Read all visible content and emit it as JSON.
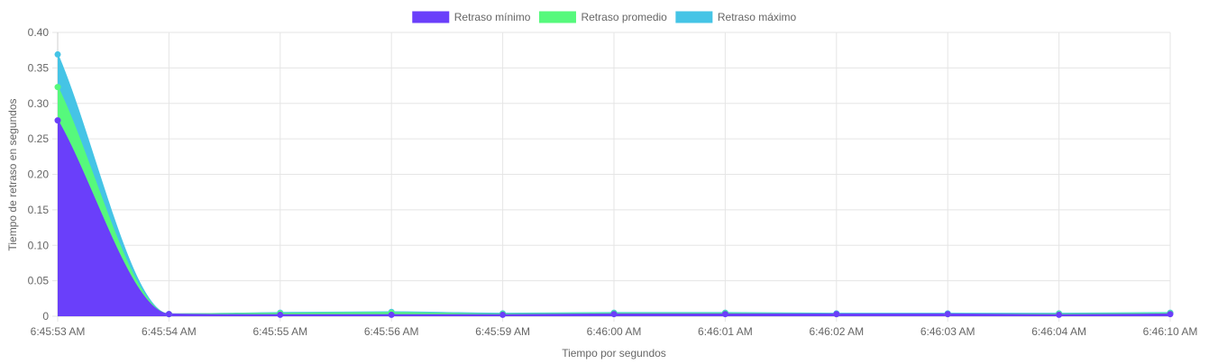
{
  "chart_data": {
    "type": "area",
    "categories": [
      "6:45:53 AM",
      "6:45:54 AM",
      "6:45:55 AM",
      "6:45:56 AM",
      "6:45:59 AM",
      "6:46:00 AM",
      "6:46:01 AM",
      "6:46:02 AM",
      "6:46:03 AM",
      "6:46:04 AM",
      "6:46:10 AM"
    ],
    "series": [
      {
        "name": "Retraso mínimo",
        "color": "#6a3ffa",
        "values": [
          0.276,
          0.003,
          0.002,
          0.002,
          0.002,
          0.003,
          0.003,
          0.003,
          0.003,
          0.002,
          0.003
        ]
      },
      {
        "name": "Retraso promedio",
        "color": "#56f97c",
        "values": [
          0.323,
          0.003,
          0.004,
          0.005,
          0.003,
          0.004,
          0.004,
          0.003,
          0.003,
          0.003,
          0.004
        ]
      },
      {
        "name": "Retraso máximo",
        "color": "#45c4e6",
        "values": [
          0.369,
          0.003,
          0.005,
          0.006,
          0.004,
          0.005,
          0.005,
          0.004,
          0.004,
          0.004,
          0.005
        ]
      }
    ],
    "xlabel": "Tiempo por segundos",
    "ylabel": "Tiempo de retraso en segundos",
    "ylim": [
      0,
      0.4
    ],
    "yticks": [
      "0",
      "0.05",
      "0.10",
      "0.15",
      "0.20",
      "0.25",
      "0.30",
      "0.35",
      "0.40"
    ],
    "ytick_values": [
      0,
      0.05,
      0.1,
      0.15,
      0.2,
      0.25,
      0.3,
      0.35,
      0.4
    ],
    "grid": true,
    "legend": "top-center"
  }
}
